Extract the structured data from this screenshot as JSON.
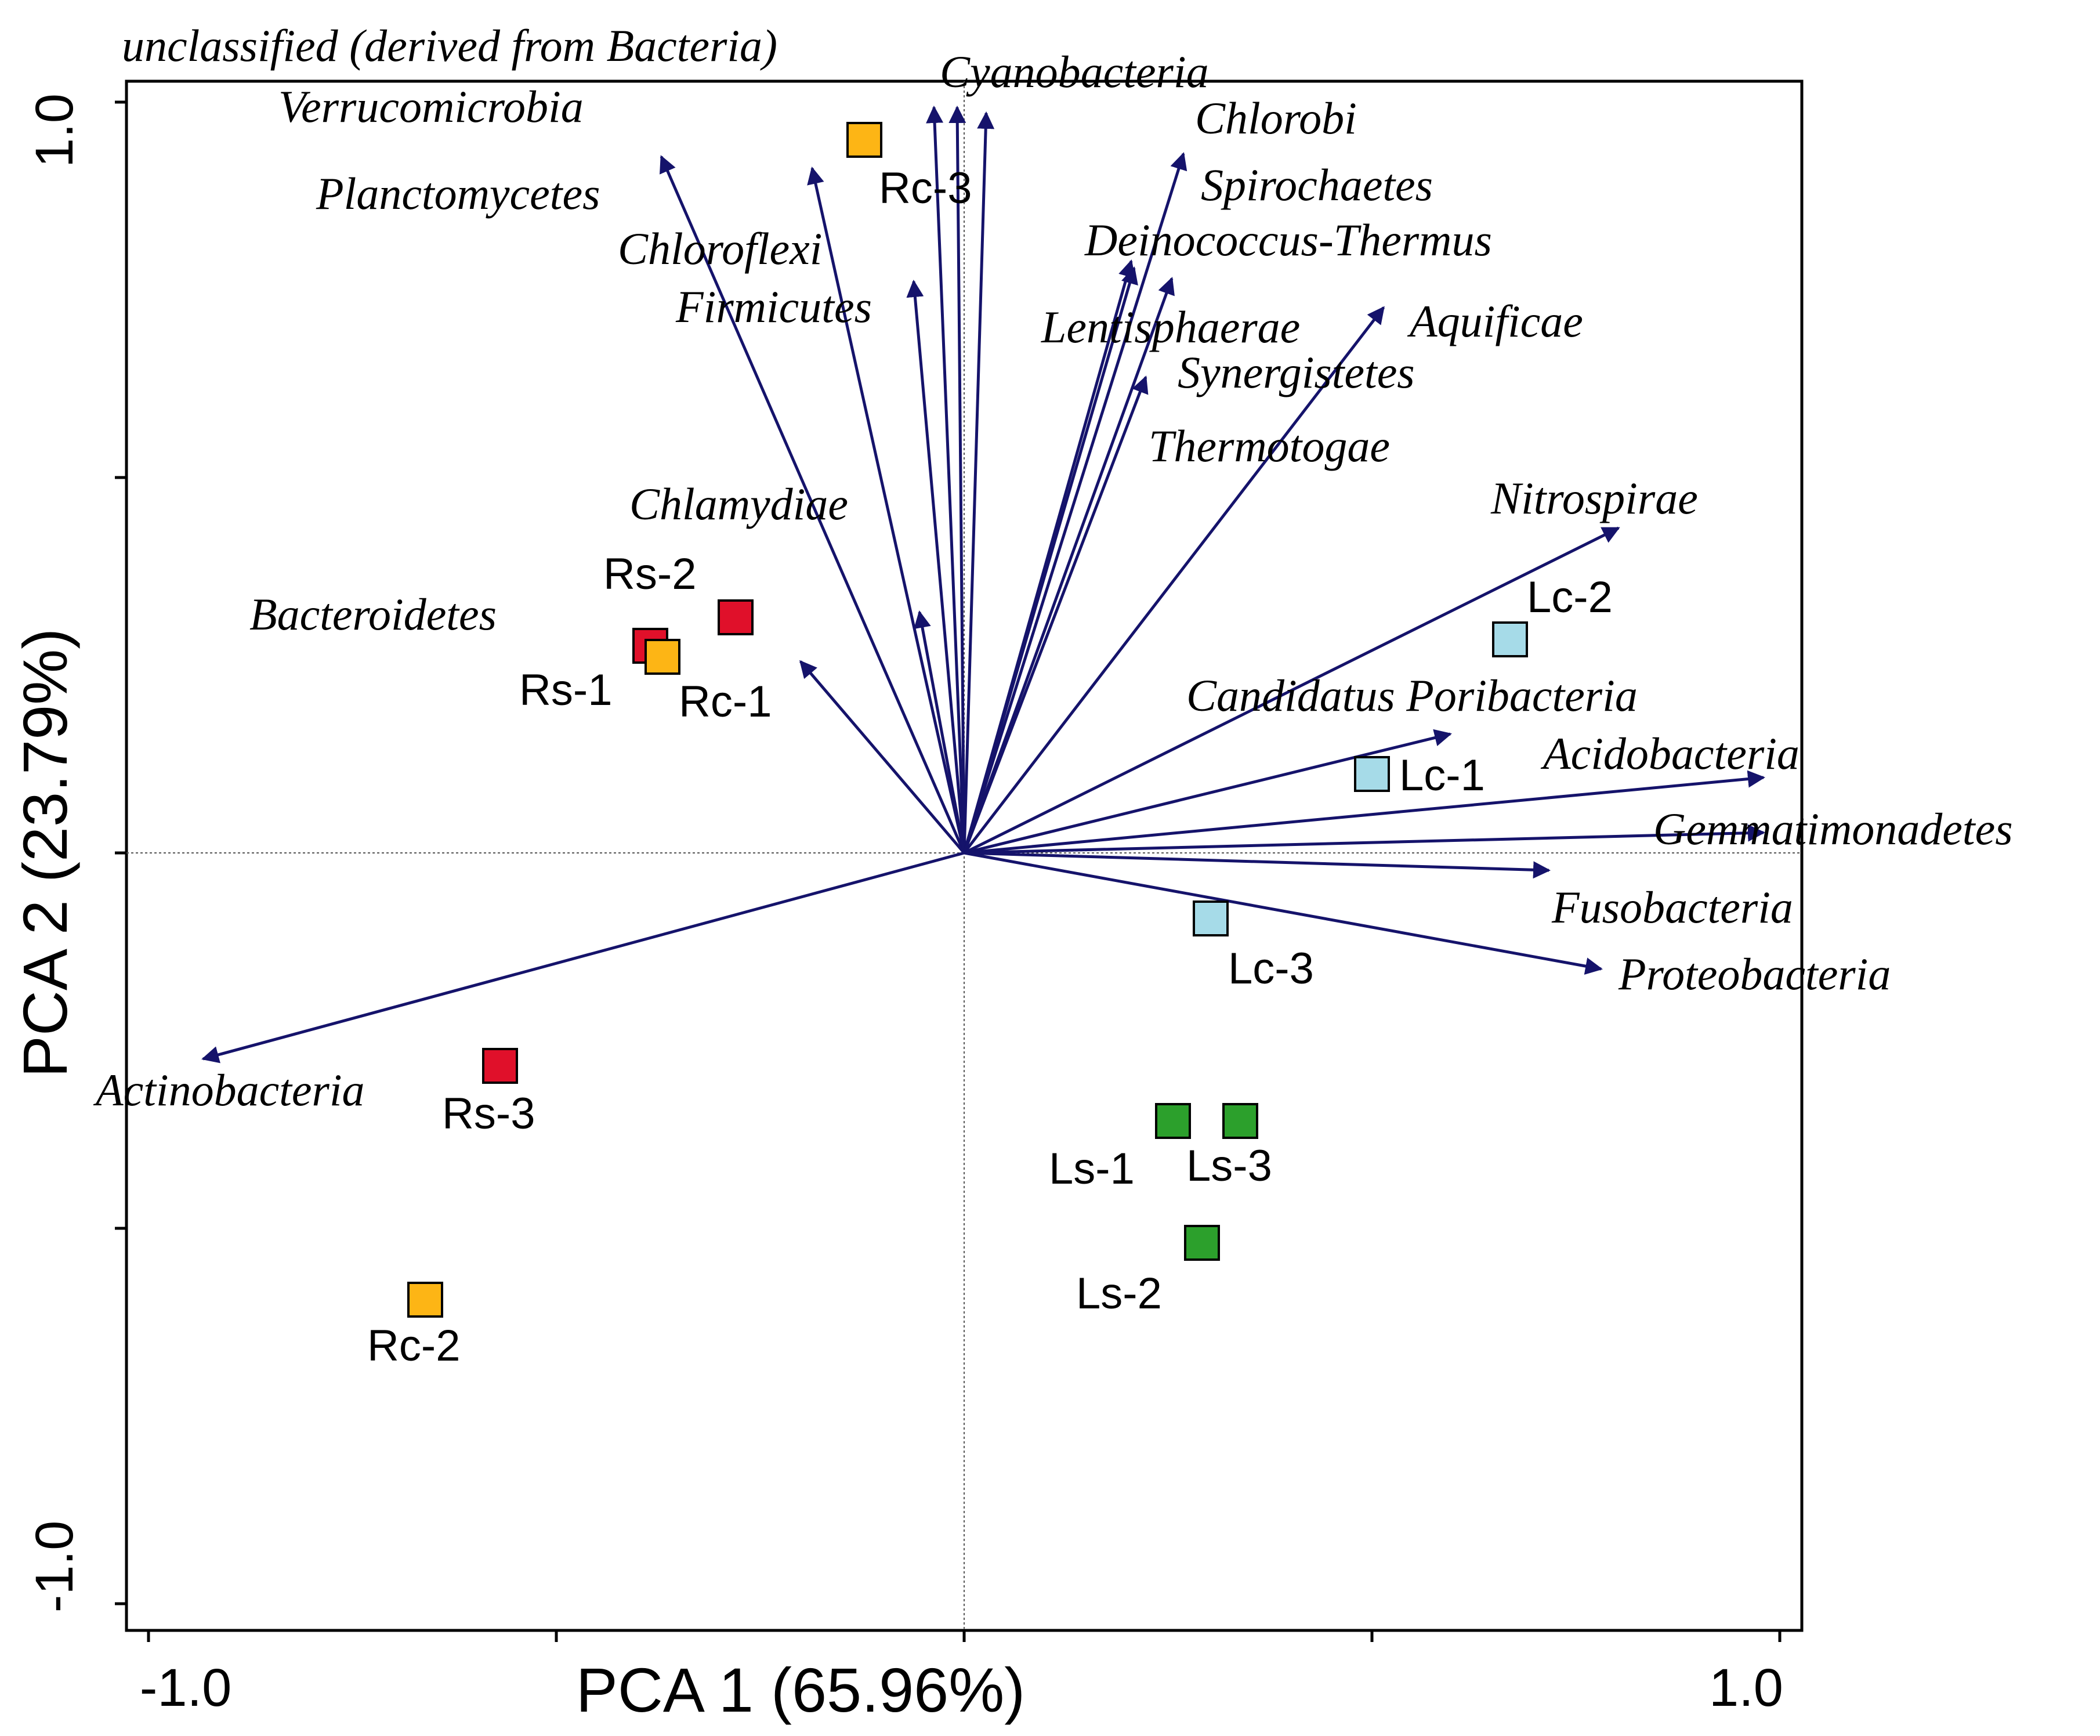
{
  "chart_data": {
    "type": "scatter",
    "subtype": "pca_biplot",
    "xlabel": "PCA 1 (65.96%)",
    "ylabel": "PCA 2 (23.79%)",
    "xlim": [
      -1.0,
      1.0
    ],
    "ylim": [
      -1.0,
      1.0
    ],
    "x_tick_labels": [
      "-1.0",
      "1.0"
    ],
    "y_tick_labels": [
      "-1.0",
      "1.0"
    ],
    "grid": false,
    "arrow_color": "#15136b",
    "variables": [
      {
        "name": "unclassified (derived from Bacteria)",
        "x": 0.03,
        "y": 0.97
      },
      {
        "name": "Cyanobacteria",
        "x": -0.04,
        "y": 0.98
      },
      {
        "name": "Verrucomicrobia",
        "x": -0.37,
        "y": 0.92
      },
      {
        "name": "Planctomycetes",
        "x": -0.18,
        "y": 0.91
      },
      {
        "name": "Chloroflexi",
        "x": 0.04,
        "y": 0.92
      },
      {
        "name": "Firmicutes",
        "x": -0.06,
        "y": 0.75
      },
      {
        "name": "Chlorobi",
        "x": 0.28,
        "y": 0.92
      },
      {
        "name": "Spirochaetes",
        "x": 0.26,
        "y": 0.76
      },
      {
        "name": "Deinococcus-Thermus",
        "x": 0.21,
        "y": 0.78
      },
      {
        "name": "Aquificae",
        "x": 0.52,
        "y": 0.72
      },
      {
        "name": "Lentisphaerae",
        "x": 0.19,
        "y": 0.63
      },
      {
        "name": "Synergistetes",
        "x": 0.23,
        "y": 0.64
      },
      {
        "name": "Thermotogae",
        "x": -0.05,
        "y": 0.33
      },
      {
        "name": "Nitrospirae",
        "x": 0.81,
        "y": 0.42
      },
      {
        "name": "Chlamydiae",
        "x": -0.2,
        "y": 0.25
      },
      {
        "name": "Bacteroidetes",
        "x": -0.94,
        "y": -0.27
      },
      {
        "name": "Candidatus Poribacteria",
        "x": 0.6,
        "y": 0.16
      },
      {
        "name": "Acidobacteria",
        "x": 0.99,
        "y": 0.1
      },
      {
        "name": "Gemmatimonadetes",
        "x": 0.99,
        "y": 0.03
      },
      {
        "name": "Fusobacteria",
        "x": 0.7,
        "y": -0.03
      },
      {
        "name": "Proteobacteria",
        "x": 0.79,
        "y": -0.15
      },
      {
        "name": "Actinobacteria",
        "x": -0.94,
        "y": -0.27
      }
    ],
    "label_text": {
      "unclassified (derived from Bacteria)": "unclassified (derived from Bacteria)",
      "Cyanobacteria": "Cyanobacteria",
      "Verrucomicrobia": "Verrucomicrobia",
      "Planctomycetes": "Planctomycetes",
      "Chloroflexi": "Chloroflexi",
      "Firmicutes": "Firmicutes",
      "Chlorobi": "Chlorobi",
      "Spirochaetes": "Spirochaetes",
      "Deinococcus-Thermus": "Deinococcus-Thermus",
      "Aquificae": "Aquificae",
      "Lentisphaerae": "Lentisphaerae",
      "Synergistetes": "Synergistetes",
      "Thermotogae": "Thermotogae",
      "Nitrospirae": "Nitrospirae",
      "Chlamydiae": "Chlamydiae",
      "Bacteroidetes": "Bacteroidetes",
      "Candidatus Poribacteria": "Candidatus Poribacteria",
      "Acidobacteria": "Acidobacteria",
      "Gemmatimonadetes": "Gemmatimonadetes",
      "Fusobacteria": "Fusobacteria",
      "Proteobacteria": "Proteobacteria",
      "Actinobacteria": "Actinobacteria"
    },
    "samples": [
      {
        "name": "Rs-1",
        "group": "Rs",
        "x": -0.39,
        "y": 0.28
      },
      {
        "name": "Rs-2",
        "group": "Rs",
        "x": -0.28,
        "y": 0.31
      },
      {
        "name": "Rs-3",
        "group": "Rs",
        "x": -0.57,
        "y": -0.28
      },
      {
        "name": "Rc-1",
        "group": "Rc",
        "x": -0.37,
        "y": 0.26
      },
      {
        "name": "Rc-2",
        "group": "Rc",
        "x": -0.66,
        "y": -0.59
      },
      {
        "name": "Rc-3",
        "group": "Rc",
        "x": -0.12,
        "y": 0.94
      },
      {
        "name": "Lc-1",
        "group": "Lc",
        "x": 0.5,
        "y": 0.1
      },
      {
        "name": "Lc-2",
        "group": "Lc",
        "x": 0.67,
        "y": 0.28
      },
      {
        "name": "Lc-3",
        "group": "Lc",
        "x": 0.31,
        "y": -0.09
      },
      {
        "name": "Ls-1",
        "group": "Ls",
        "x": 0.26,
        "y": -0.36
      },
      {
        "name": "Ls-2",
        "group": "Ls",
        "x": 0.29,
        "y": -0.52
      },
      {
        "name": "Ls-3",
        "group": "Ls",
        "x": 0.34,
        "y": -0.36
      }
    ],
    "group_colors": {
      "Rs": "#e0102a",
      "Rc": "#fdb515",
      "Lc": "#a6dbe8",
      "Ls": "#2ca02c"
    }
  }
}
